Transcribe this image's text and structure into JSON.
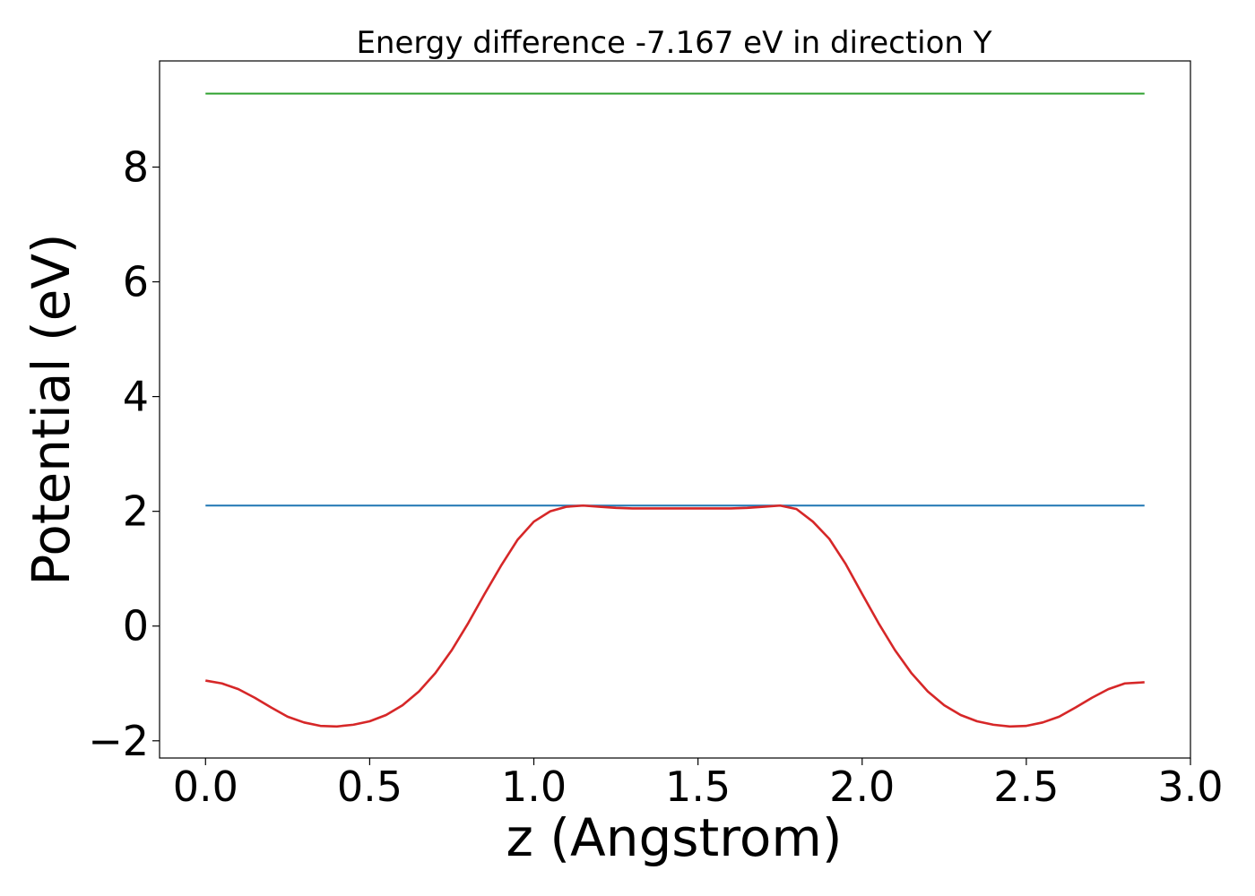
{
  "chart_data": {
    "type": "line",
    "title": "Energy difference -7.167 eV in direction Y",
    "xlabel": "z (Angstrom)",
    "ylabel": "Potential (eV)",
    "xlim": [
      -0.14,
      3.0
    ],
    "ylim": [
      -2.3,
      9.85
    ],
    "xticks": [
      0.0,
      0.5,
      1.0,
      1.5,
      2.0,
      2.5,
      3.0
    ],
    "xtick_labels": [
      "0.0",
      "0.5",
      "1.0",
      "1.5",
      "2.0",
      "2.5",
      "3.0"
    ],
    "yticks": [
      -2,
      0,
      2,
      4,
      6,
      8
    ],
    "ytick_labels": [
      "−2",
      "0",
      "2",
      "4",
      "6",
      "8"
    ],
    "grid": false,
    "series": [
      {
        "color": "#2ca02c",
        "x": [
          0.0,
          2.86
        ],
        "y": [
          9.28,
          9.28
        ]
      },
      {
        "color": "#1f77b4",
        "x": [
          0.0,
          2.86
        ],
        "y": [
          2.1,
          2.1
        ]
      },
      {
        "color": "#d62728",
        "x": [
          0.0,
          0.05,
          0.1,
          0.15,
          0.2,
          0.25,
          0.3,
          0.35,
          0.4,
          0.45,
          0.5,
          0.55,
          0.6,
          0.65,
          0.7,
          0.75,
          0.8,
          0.85,
          0.9,
          0.95,
          1.0,
          1.05,
          1.1,
          1.15,
          1.2,
          1.25,
          1.3,
          1.35,
          1.4,
          1.45,
          1.5,
          1.55,
          1.6,
          1.65,
          1.7,
          1.75,
          1.8,
          1.85,
          1.9,
          1.95,
          2.0,
          2.05,
          2.1,
          2.15,
          2.2,
          2.25,
          2.3,
          2.35,
          2.4,
          2.45,
          2.5,
          2.55,
          2.6,
          2.65,
          2.7,
          2.75,
          2.8,
          2.86
        ],
        "y": [
          -0.95,
          -1.0,
          -1.1,
          -1.25,
          -1.42,
          -1.58,
          -1.68,
          -1.74,
          -1.75,
          -1.72,
          -1.66,
          -1.55,
          -1.38,
          -1.14,
          -0.82,
          -0.42,
          0.05,
          0.56,
          1.05,
          1.5,
          1.82,
          2.0,
          2.08,
          2.1,
          2.08,
          2.06,
          2.05,
          2.05,
          2.05,
          2.05,
          2.05,
          2.05,
          2.05,
          2.06,
          2.08,
          2.1,
          2.04,
          1.82,
          1.52,
          1.08,
          0.56,
          0.05,
          -0.42,
          -0.82,
          -1.14,
          -1.38,
          -1.55,
          -1.66,
          -1.72,
          -1.75,
          -1.74,
          -1.68,
          -1.58,
          -1.42,
          -1.25,
          -1.1,
          -1.0,
          -0.98
        ]
      }
    ]
  }
}
